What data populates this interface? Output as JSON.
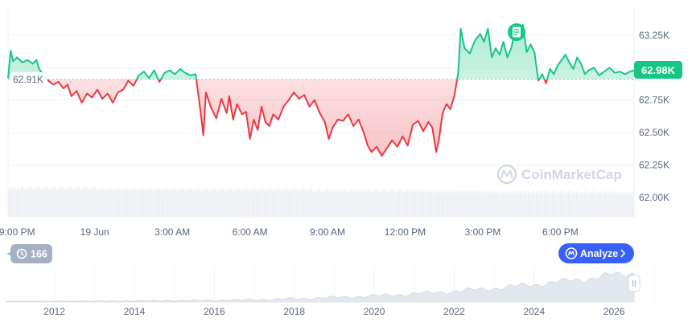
{
  "chart_data": {
    "type": "line",
    "title": "",
    "xlabel": "",
    "ylabel": "",
    "baseline_label": "62.91K",
    "baseline_value": 62910,
    "current_label": "62.98K",
    "current_value": 62980,
    "ylim": [
      61850,
      63460
    ],
    "y_ticks": [
      {
        "value": 63250,
        "label": "63.25K"
      },
      {
        "value": 63000,
        "label": "63.00K"
      },
      {
        "value": 62750,
        "label": "62.75K"
      },
      {
        "value": 62500,
        "label": "62.50K"
      },
      {
        "value": 62250,
        "label": "62.25K"
      },
      {
        "value": 62000,
        "label": "62.00K"
      }
    ],
    "x_ticks": [
      {
        "label": "9:00 PM",
        "hour": 0
      },
      {
        "label": "19 Jun",
        "hour": 3
      },
      {
        "label": "3:00 AM",
        "hour": 6
      },
      {
        "label": "6:00 AM",
        "hour": 9
      },
      {
        "label": "9:00 AM",
        "hour": 12
      },
      {
        "label": "12:00 PM",
        "hour": 15
      },
      {
        "label": "3:00 PM",
        "hour": 18
      },
      {
        "label": "6:00 PM",
        "hour": 21
      }
    ],
    "x_hours_range": [
      -0.35,
      23.85
    ],
    "series": [
      {
        "points": [
          [
            -0.35,
            62920
          ],
          [
            -0.25,
            63130
          ],
          [
            -0.15,
            63050
          ],
          [
            0,
            63080
          ],
          [
            0.2,
            63040
          ],
          [
            0.4,
            63060
          ],
          [
            0.6,
            63030
          ],
          [
            0.75,
            63060
          ],
          [
            0.85,
            62990
          ],
          [
            1.2,
            62900
          ],
          [
            1.4,
            62870
          ],
          [
            1.6,
            62890
          ],
          [
            1.8,
            62840
          ],
          [
            1.95,
            62870
          ],
          [
            2.1,
            62780
          ],
          [
            2.3,
            62820
          ],
          [
            2.5,
            62730
          ],
          [
            2.7,
            62800
          ],
          [
            2.9,
            62770
          ],
          [
            3.1,
            62830
          ],
          [
            3.3,
            62760
          ],
          [
            3.5,
            62800
          ],
          [
            3.7,
            62730
          ],
          [
            3.9,
            62810
          ],
          [
            4.1,
            62830
          ],
          [
            4.3,
            62900
          ],
          [
            4.5,
            62860
          ],
          [
            4.7,
            62940
          ],
          [
            4.9,
            62970
          ],
          [
            5.1,
            62920
          ],
          [
            5.3,
            62980
          ],
          [
            5.5,
            62890
          ],
          [
            5.7,
            62960
          ],
          [
            5.9,
            62980
          ],
          [
            6.1,
            62950
          ],
          [
            6.3,
            62990
          ],
          [
            6.5,
            62960
          ],
          [
            6.7,
            62940
          ],
          [
            6.9,
            62950
          ],
          [
            7.1,
            62650
          ],
          [
            7.2,
            62480
          ],
          [
            7.3,
            62810
          ],
          [
            7.5,
            62690
          ],
          [
            7.7,
            62610
          ],
          [
            7.9,
            62760
          ],
          [
            8.1,
            62650
          ],
          [
            8.2,
            62780
          ],
          [
            8.35,
            62600
          ],
          [
            8.5,
            62720
          ],
          [
            8.7,
            62640
          ],
          [
            8.85,
            62660
          ],
          [
            9.0,
            62450
          ],
          [
            9.15,
            62600
          ],
          [
            9.3,
            62520
          ],
          [
            9.45,
            62700
          ],
          [
            9.6,
            62580
          ],
          [
            9.75,
            62550
          ],
          [
            9.9,
            62640
          ],
          [
            10.1,
            62600
          ],
          [
            10.3,
            62700
          ],
          [
            10.5,
            62750
          ],
          [
            10.7,
            62810
          ],
          [
            10.9,
            62760
          ],
          [
            11.1,
            62790
          ],
          [
            11.3,
            62700
          ],
          [
            11.5,
            62750
          ],
          [
            11.7,
            62650
          ],
          [
            11.9,
            62580
          ],
          [
            12.05,
            62450
          ],
          [
            12.2,
            62540
          ],
          [
            12.4,
            62600
          ],
          [
            12.6,
            62590
          ],
          [
            12.8,
            62640
          ],
          [
            13.0,
            62550
          ],
          [
            13.2,
            62600
          ],
          [
            13.4,
            62500
          ],
          [
            13.55,
            62400
          ],
          [
            13.7,
            62350
          ],
          [
            13.9,
            62390
          ],
          [
            14.1,
            62320
          ],
          [
            14.3,
            62380
          ],
          [
            14.5,
            62440
          ],
          [
            14.7,
            62390
          ],
          [
            14.9,
            62470
          ],
          [
            15.1,
            62400
          ],
          [
            15.3,
            62560
          ],
          [
            15.5,
            62590
          ],
          [
            15.7,
            62510
          ],
          [
            15.9,
            62580
          ],
          [
            16.05,
            62540
          ],
          [
            16.2,
            62350
          ],
          [
            16.3,
            62440
          ],
          [
            16.45,
            62650
          ],
          [
            16.6,
            62720
          ],
          [
            16.75,
            62680
          ],
          [
            16.9,
            62780
          ],
          [
            17.05,
            62960
          ],
          [
            17.15,
            63300
          ],
          [
            17.3,
            63150
          ],
          [
            17.5,
            63110
          ],
          [
            17.7,
            63210
          ],
          [
            17.9,
            63260
          ],
          [
            18.05,
            63200
          ],
          [
            18.2,
            63300
          ],
          [
            18.35,
            63080
          ],
          [
            18.5,
            63150
          ],
          [
            18.65,
            63100
          ],
          [
            18.8,
            63200
          ],
          [
            18.95,
            63080
          ],
          [
            19.1,
            63150
          ],
          [
            19.25,
            63280
          ],
          [
            19.4,
            63230
          ],
          [
            19.55,
            63330
          ],
          [
            19.7,
            63120
          ],
          [
            19.85,
            63180
          ],
          [
            20.0,
            63120
          ],
          [
            20.15,
            62900
          ],
          [
            20.3,
            62950
          ],
          [
            20.45,
            62880
          ],
          [
            20.6,
            62990
          ],
          [
            20.75,
            62950
          ],
          [
            20.9,
            63020
          ],
          [
            21.05,
            63060
          ],
          [
            21.2,
            63100
          ],
          [
            21.35,
            63040
          ],
          [
            21.5,
            62990
          ],
          [
            21.65,
            63080
          ],
          [
            21.8,
            63030
          ],
          [
            21.95,
            62950
          ],
          [
            22.1,
            62980
          ],
          [
            22.3,
            63000
          ],
          [
            22.5,
            62940
          ],
          [
            22.7,
            62970
          ],
          [
            22.9,
            63000
          ],
          [
            23.1,
            62960
          ],
          [
            23.3,
            62970
          ],
          [
            23.5,
            62950
          ],
          [
            23.7,
            62970
          ],
          [
            23.85,
            62980
          ]
        ]
      }
    ],
    "nav_x_ticks": [
      "2012",
      "2014",
      "2016",
      "2018",
      "2020",
      "2022",
      "2024",
      "2026"
    ],
    "nav_year_range": [
      2010.8,
      2026.5
    ],
    "colors": {
      "up": "#16c784",
      "down": "#ea3943",
      "baseline": "#a6b0c3",
      "grid": "#eff2f5",
      "accent": "#3861fb"
    }
  },
  "watermark": "CoinMarketCap",
  "history_badge": {
    "icon": "history-icon",
    "label": "166"
  },
  "analyze_button": {
    "label": "Analyze",
    "icon": "analyze-logo-icon"
  },
  "event_marker": {
    "icon": "document-icon"
  },
  "navigator_handle": {
    "icon": "pause-grip-icon"
  }
}
